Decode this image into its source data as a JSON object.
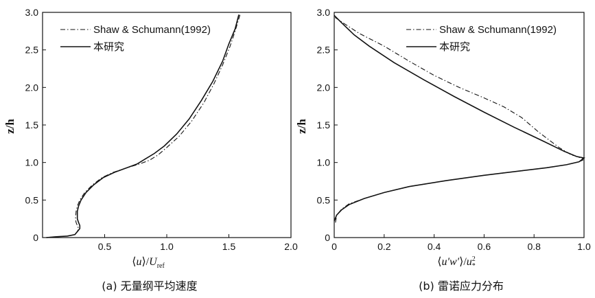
{
  "chart_data": [
    {
      "type": "line",
      "panel": "a",
      "caption": "(a) 无量纲平均速度",
      "xlabel_parts": [
        "⟨",
        "u",
        "⟩/",
        "U",
        "ref"
      ],
      "ylabel": "z/h",
      "xlim": [
        0,
        2.0
      ],
      "ylim": [
        0,
        3.0
      ],
      "xticks": [
        "0.5",
        "1.0",
        "1.5",
        "2.0"
      ],
      "xtick_values": [
        0.5,
        1.0,
        1.5,
        2.0
      ],
      "yticks": [
        "0",
        "0.5",
        "1.0",
        "1.5",
        "2.0",
        "2.5",
        "3.0"
      ],
      "ytick_values": [
        0,
        0.5,
        1.0,
        1.5,
        2.0,
        2.5,
        3.0
      ],
      "legend": {
        "position": "top-left"
      },
      "series": [
        {
          "name": "Shaw & Schumann(1992)",
          "style": "dashdot",
          "points": [
            [
              0.03,
              0.0
            ],
            [
              0.1,
              0.01
            ],
            [
              0.2,
              0.02
            ],
            [
              0.26,
              0.04
            ],
            [
              0.28,
              0.08
            ],
            [
              0.29,
              0.12
            ],
            [
              0.28,
              0.16
            ],
            [
              0.27,
              0.2
            ],
            [
              0.265,
              0.25
            ],
            [
              0.27,
              0.35
            ],
            [
              0.28,
              0.42
            ],
            [
              0.3,
              0.5
            ],
            [
              0.34,
              0.6
            ],
            [
              0.4,
              0.7
            ],
            [
              0.48,
              0.8
            ],
            [
              0.57,
              0.87
            ],
            [
              0.68,
              0.93
            ],
            [
              0.78,
              0.98
            ],
            [
              0.86,
              1.03
            ],
            [
              0.93,
              1.1
            ],
            [
              1.0,
              1.2
            ],
            [
              1.1,
              1.35
            ],
            [
              1.2,
              1.55
            ],
            [
              1.3,
              1.8
            ],
            [
              1.38,
              2.05
            ],
            [
              1.45,
              2.3
            ],
            [
              1.51,
              2.55
            ],
            [
              1.55,
              2.75
            ],
            [
              1.59,
              2.97
            ]
          ]
        },
        {
          "name": "本研究",
          "style": "solid",
          "points": [
            [
              0.03,
              0.0
            ],
            [
              0.1,
              0.01
            ],
            [
              0.2,
              0.02
            ],
            [
              0.26,
              0.04
            ],
            [
              0.28,
              0.08
            ],
            [
              0.3,
              0.12
            ],
            [
              0.3,
              0.16
            ],
            [
              0.29,
              0.2
            ],
            [
              0.28,
              0.25
            ],
            [
              0.28,
              0.35
            ],
            [
              0.29,
              0.42
            ],
            [
              0.31,
              0.5
            ],
            [
              0.35,
              0.6
            ],
            [
              0.41,
              0.7
            ],
            [
              0.49,
              0.8
            ],
            [
              0.58,
              0.87
            ],
            [
              0.68,
              0.93
            ],
            [
              0.76,
              0.98
            ],
            [
              0.83,
              1.05
            ],
            [
              0.9,
              1.12
            ],
            [
              0.98,
              1.22
            ],
            [
              1.08,
              1.38
            ],
            [
              1.18,
              1.58
            ],
            [
              1.28,
              1.83
            ],
            [
              1.37,
              2.08
            ],
            [
              1.45,
              2.35
            ],
            [
              1.5,
              2.58
            ],
            [
              1.55,
              2.78
            ],
            [
              1.58,
              2.97
            ]
          ]
        }
      ]
    },
    {
      "type": "line",
      "panel": "b",
      "caption": "(b) 雷诺应力分布",
      "xlabel_parts": [
        "⟨",
        "u′w′",
        "⟩/",
        "u",
        "2",
        "*"
      ],
      "ylabel": "z/h",
      "xlim": [
        0,
        1.0
      ],
      "ylim": [
        0,
        3.0
      ],
      "xticks": [
        "0",
        "0.2",
        "0.4",
        "0.6",
        "0.8",
        "1.0"
      ],
      "xtick_values": [
        0,
        0.2,
        0.4,
        0.6,
        0.8,
        1.0
      ],
      "yticks": [
        "0",
        "0.5",
        "1.0",
        "1.5",
        "2.0",
        "2.5",
        "3.0"
      ],
      "ytick_values": [
        0,
        0.5,
        1.0,
        1.5,
        2.0,
        2.5,
        3.0
      ],
      "legend": {
        "position": "top-right"
      },
      "series": [
        {
          "name": "Shaw & Schumann(1992)",
          "style": "dashdot",
          "points": [
            [
              0.005,
              0.2
            ],
            [
              0.01,
              0.3
            ],
            [
              0.03,
              0.38
            ],
            [
              0.06,
              0.45
            ],
            [
              0.12,
              0.52
            ],
            [
              0.2,
              0.6
            ],
            [
              0.3,
              0.68
            ],
            [
              0.45,
              0.76
            ],
            [
              0.6,
              0.83
            ],
            [
              0.75,
              0.89
            ],
            [
              0.85,
              0.93
            ],
            [
              0.93,
              0.97
            ],
            [
              0.98,
              1.01
            ],
            [
              1.0,
              1.04
            ],
            [
              0.98,
              1.07
            ],
            [
              0.95,
              1.1
            ],
            [
              0.9,
              1.2
            ],
            [
              0.82,
              1.4
            ],
            [
              0.75,
              1.6
            ],
            [
              0.68,
              1.74
            ],
            [
              0.6,
              1.86
            ],
            [
              0.5,
              2.0
            ],
            [
              0.4,
              2.16
            ],
            [
              0.3,
              2.35
            ],
            [
              0.2,
              2.55
            ],
            [
              0.1,
              2.72
            ],
            [
              0.04,
              2.85
            ],
            [
              0.0,
              2.94
            ]
          ]
        },
        {
          "name": "本研究",
          "style": "solid",
          "points": [
            [
              0.0,
              0.22
            ],
            [
              0.01,
              0.3
            ],
            [
              0.03,
              0.37
            ],
            [
              0.06,
              0.44
            ],
            [
              0.12,
              0.52
            ],
            [
              0.2,
              0.6
            ],
            [
              0.3,
              0.68
            ],
            [
              0.45,
              0.76
            ],
            [
              0.6,
              0.83
            ],
            [
              0.75,
              0.89
            ],
            [
              0.85,
              0.93
            ],
            [
              0.93,
              0.97
            ],
            [
              0.98,
              1.01
            ],
            [
              1.0,
              1.06
            ],
            [
              0.97,
              1.08
            ],
            [
              0.92,
              1.15
            ],
            [
              0.84,
              1.28
            ],
            [
              0.72,
              1.47
            ],
            [
              0.6,
              1.67
            ],
            [
              0.48,
              1.88
            ],
            [
              0.36,
              2.1
            ],
            [
              0.24,
              2.33
            ],
            [
              0.14,
              2.55
            ],
            [
              0.08,
              2.7
            ],
            [
              0.03,
              2.86
            ],
            [
              0.0,
              2.96
            ]
          ]
        }
      ]
    }
  ]
}
